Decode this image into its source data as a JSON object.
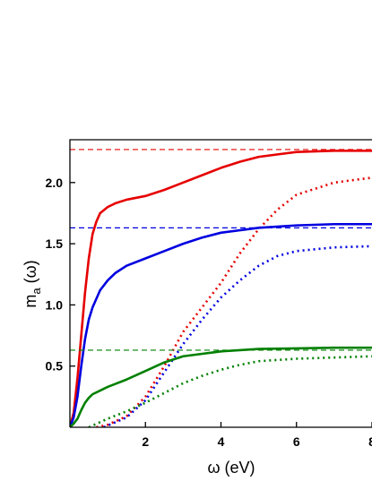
{
  "chart_data": {
    "type": "line",
    "xlabel": "ω (eV)",
    "ylabel_main": "m",
    "ylabel_sub": "a",
    "ylabel_suffix": " (ω)",
    "xlim": [
      0,
      8.0
    ],
    "ylim": [
      0,
      2.35
    ],
    "xticks": [
      2,
      4,
      6,
      8
    ],
    "xtick_labels": [
      "2",
      "4",
      "6",
      "8"
    ],
    "yticks": [
      0.5,
      1.0,
      1.5,
      2.0
    ],
    "ytick_labels": [
      "0.5",
      "1.0",
      "1.5",
      "2.0"
    ],
    "grid": false,
    "legend": "none",
    "series": [
      {
        "color": "#e60000",
        "style": "solid",
        "x": [
          0,
          0.1,
          0.2,
          0.3,
          0.4,
          0.5,
          0.6,
          0.7,
          0.8,
          1.0,
          1.2,
          1.5,
          2.0,
          2.5,
          3.0,
          3.5,
          4.0,
          4.5,
          5.0,
          5.5,
          6.0,
          7.0,
          8.0
        ],
        "y": [
          0,
          0.12,
          0.4,
          0.75,
          1.1,
          1.38,
          1.58,
          1.68,
          1.75,
          1.8,
          1.83,
          1.86,
          1.89,
          1.94,
          2.0,
          2.06,
          2.12,
          2.17,
          2.21,
          2.23,
          2.25,
          2.26,
          2.26
        ]
      },
      {
        "color": "#e60000",
        "style": "dotted",
        "x": [
          0.7,
          1.0,
          1.5,
          2.0,
          2.5,
          3.0,
          3.5,
          4.0,
          4.5,
          5.0,
          5.5,
          6.0,
          7.0,
          8.0
        ],
        "y": [
          0,
          0.02,
          0.09,
          0.25,
          0.5,
          0.78,
          0.98,
          1.18,
          1.42,
          1.62,
          1.78,
          1.9,
          2.0,
          2.04
        ]
      },
      {
        "color": "#e60000",
        "style": "dashed",
        "x": [
          0,
          8.0
        ],
        "y": [
          2.27,
          2.27
        ]
      },
      {
        "color": "#0000e0",
        "style": "solid",
        "x": [
          0,
          0.1,
          0.2,
          0.3,
          0.4,
          0.5,
          0.6,
          0.8,
          1.0,
          1.2,
          1.5,
          2.0,
          2.5,
          3.0,
          3.5,
          4.0,
          5.0,
          6.0,
          7.0,
          8.0
        ],
        "y": [
          0,
          0.08,
          0.25,
          0.5,
          0.72,
          0.88,
          0.98,
          1.12,
          1.2,
          1.26,
          1.32,
          1.38,
          1.44,
          1.5,
          1.55,
          1.59,
          1.63,
          1.65,
          1.66,
          1.66
        ]
      },
      {
        "color": "#0000e0",
        "style": "dotted",
        "x": [
          0.9,
          1.5,
          2.0,
          2.5,
          3.0,
          3.5,
          4.0,
          4.5,
          5.0,
          5.5,
          6.0,
          7.0,
          8.0
        ],
        "y": [
          0,
          0.08,
          0.22,
          0.45,
          0.68,
          0.88,
          1.06,
          1.2,
          1.32,
          1.4,
          1.44,
          1.47,
          1.48
        ]
      },
      {
        "color": "#0000e0",
        "style": "dashed",
        "x": [
          0,
          8.0
        ],
        "y": [
          1.63,
          1.63
        ]
      },
      {
        "color": "#008000",
        "style": "solid",
        "x": [
          0,
          0.1,
          0.2,
          0.3,
          0.4,
          0.5,
          0.6,
          0.8,
          1.0,
          1.5,
          2.0,
          2.5,
          3.0,
          4.0,
          5.0,
          6.0,
          7.0,
          8.0
        ],
        "y": [
          0,
          0.03,
          0.07,
          0.14,
          0.2,
          0.24,
          0.27,
          0.3,
          0.33,
          0.39,
          0.46,
          0.53,
          0.58,
          0.62,
          0.64,
          0.645,
          0.65,
          0.65
        ]
      },
      {
        "color": "#008000",
        "style": "dotted",
        "x": [
          0.5,
          1.0,
          1.5,
          2.0,
          2.5,
          3.0,
          3.5,
          4.0,
          4.5,
          5.0,
          6.0,
          7.0,
          8.0
        ],
        "y": [
          0,
          0.07,
          0.13,
          0.2,
          0.28,
          0.36,
          0.42,
          0.47,
          0.51,
          0.54,
          0.56,
          0.57,
          0.58
        ]
      },
      {
        "color": "#008000",
        "style": "dashed",
        "x": [
          0,
          8.0
        ],
        "y": [
          0.63,
          0.63
        ]
      }
    ]
  }
}
